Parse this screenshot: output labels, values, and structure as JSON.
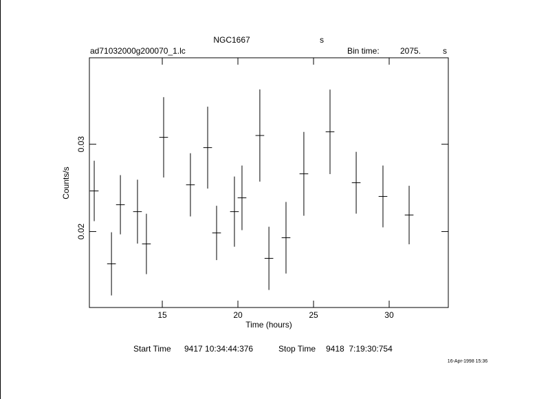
{
  "chart_data": {
    "type": "errorbar",
    "title": "NGC1667",
    "title_suffix": "s",
    "filename": "ad71032000g200070_1.lc",
    "bin_time_label": "Bin time:",
    "bin_time": "2075.",
    "bin_time_unit": "s",
    "xlabel": "Time (hours)",
    "ylabel": "Counts/s",
    "start_time_label": "Start Time",
    "start_time": "9417 10:34:44:376",
    "stop_time_label": "Stop Time",
    "stop_time": "9418  7:19:30:754",
    "timestamp": "16-Apr-1998 15:36",
    "color": "#000000",
    "xlim": [
      10.18,
      33.91
    ],
    "ylim": [
      0.0113,
      0.0399
    ],
    "xticks": [
      15,
      20,
      25,
      30
    ],
    "yticks": [
      0.02,
      0.03
    ],
    "xerr": 0.288,
    "x": [
      10.5,
      11.64,
      12.23,
      13.36,
      13.95,
      15.09,
      16.86,
      18.0,
      18.59,
      19.77,
      20.27,
      21.45,
      22.05,
      23.18,
      24.36,
      26.09,
      27.82,
      29.59,
      31.32
    ],
    "values": [
      0.02465,
      0.0163,
      0.02307,
      0.02228,
      0.01858,
      0.03079,
      0.02535,
      0.02961,
      0.01984,
      0.02228,
      0.02386,
      0.031,
      0.01693,
      0.01929,
      0.02661,
      0.03142,
      0.02559,
      0.02402,
      0.02189
    ],
    "yerr": [
      0.00346,
      0.00362,
      0.00339,
      0.00366,
      0.00346,
      0.0046,
      0.00362,
      0.00469,
      0.00311,
      0.00402,
      0.0037,
      0.00528,
      0.00362,
      0.0041,
      0.0048,
      0.00484,
      0.00354,
      0.00354,
      0.00335
    ]
  }
}
